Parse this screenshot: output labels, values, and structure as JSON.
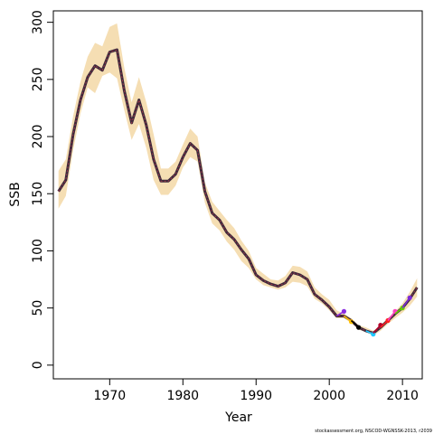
{
  "chart_data": {
    "type": "line",
    "title": "",
    "xlabel": "Year",
    "ylabel": "SSB",
    "xlim": [
      1962.3,
      2012.7
    ],
    "ylim": [
      -12,
      310
    ],
    "x_ticks": [
      1970,
      1980,
      1990,
      2000,
      2010
    ],
    "x_tick_labels": [
      "1970",
      "1980",
      "1990",
      "2000",
      "2010"
    ],
    "y_ticks": [
      0,
      50,
      100,
      150,
      200,
      250,
      300
    ],
    "y_tick_labels": [
      "0",
      "50",
      "100",
      "150",
      "200",
      "250",
      "300"
    ],
    "grid": false,
    "legend": "none",
    "band": {
      "name": "",
      "color": "#f5deb3",
      "x": [
        1963,
        1964,
        1965,
        1966,
        1967,
        1968,
        1969,
        1970,
        1971,
        1972,
        1973,
        1974,
        1975,
        1976,
        1977,
        1978,
        1979,
        1980,
        1981,
        1982,
        1983,
        1984,
        1985,
        1986,
        1987,
        1988,
        1989,
        1990,
        1991,
        1992,
        1993,
        1994,
        1995,
        1996,
        1997,
        1998,
        1999,
        2000,
        2001,
        2002,
        2003,
        2004,
        2005,
        2006,
        2007,
        2008,
        2009,
        2010,
        2011,
        2012
      ],
      "lower": [
        137,
        148,
        188,
        220,
        243,
        238,
        253,
        256,
        251,
        223,
        197,
        211,
        190,
        162,
        149,
        149,
        157,
        173,
        182,
        178,
        142,
        124,
        118,
        108,
        101,
        91,
        85,
        75,
        70,
        68,
        66,
        68,
        73,
        72,
        69,
        58,
        54,
        48,
        41,
        41,
        37,
        31,
        29,
        26,
        30,
        36,
        41,
        46,
        52,
        60
      ],
      "upper": [
        170,
        180,
        218,
        248,
        270,
        282,
        279,
        296,
        299,
        260,
        230,
        252,
        230,
        202,
        172,
        172,
        178,
        193,
        207,
        200,
        160,
        143,
        135,
        127,
        120,
        109,
        100,
        85,
        80,
        75,
        74,
        78,
        87,
        86,
        82,
        68,
        62,
        57,
        48,
        45,
        41,
        35,
        33,
        30,
        35,
        41,
        47,
        54,
        64,
        76
      ]
    },
    "series": [
      {
        "name": "",
        "color": "#3d2a3c",
        "x": [
          1963,
          1964,
          1965,
          1966,
          1967,
          1968,
          1969,
          1970,
          1971,
          1972,
          1973,
          1974,
          1975,
          1976,
          1977,
          1978,
          1979,
          1980,
          1981,
          1982,
          1983,
          1984,
          1985,
          1986,
          1987,
          1988,
          1989,
          1990,
          1991,
          1992,
          1993,
          1994,
          1995,
          1996,
          1997,
          1998,
          1999,
          2000,
          2001,
          2002,
          2003,
          2004,
          2005,
          2006,
          2007,
          2008,
          2009,
          2010,
          2011,
          2012
        ],
        "values": [
          152,
          162,
          202,
          232,
          252,
          262,
          258,
          274,
          276,
          240,
          212,
          232,
          210,
          180,
          161,
          161,
          167,
          182,
          194,
          188,
          152,
          133,
          127,
          116,
          110,
          101,
          93,
          79,
          74,
          71,
          69,
          72,
          81,
          79,
          75,
          62,
          57,
          51,
          43,
          43,
          39,
          33,
          30,
          28,
          33,
          39,
          45,
          50,
          58,
          68
        ]
      }
    ],
    "retro_peels": [
      {
        "name": "",
        "color": "#8a2be2",
        "point": [
          2002,
          47
        ],
        "x": [
          2001,
          2002
        ],
        "values": [
          43,
          47
        ]
      },
      {
        "name": "",
        "color": "#ffc107",
        "point": [
          2003,
          38
        ],
        "x": [
          2002,
          2003
        ],
        "values": [
          43,
          38
        ]
      },
      {
        "name": "",
        "color": "#000000",
        "point": [
          2004,
          33
        ],
        "x": [
          2003,
          2004
        ],
        "values": [
          39,
          33
        ]
      },
      {
        "name": "",
        "color": "#1ec8ff",
        "point": [
          2006,
          27
        ],
        "x": [
          2005,
          2006
        ],
        "values": [
          30,
          27
        ]
      },
      {
        "name": "",
        "color": "#b2002b",
        "point": [
          2007,
          35
        ],
        "x": [
          2006,
          2007
        ],
        "values": [
          28,
          35
        ]
      },
      {
        "name": "",
        "color": "#ff2020",
        "point": [
          2008,
          39
        ],
        "x": [
          2007,
          2008
        ],
        "values": [
          33,
          39
        ]
      },
      {
        "name": "",
        "color": "#ff40c0",
        "point": [
          2009,
          47
        ],
        "x": [
          2008,
          2009
        ],
        "values": [
          39,
          47
        ]
      },
      {
        "name": "",
        "color": "#66cc00",
        "point": [
          2010,
          50
        ],
        "x": [
          2009,
          2010
        ],
        "values": [
          45,
          50
        ]
      },
      {
        "name": "",
        "color": "#7b2bd9",
        "point": [
          2011,
          59
        ],
        "x": [
          2010,
          2011
        ],
        "values": [
          50,
          59
        ]
      }
    ],
    "footer": "stockassessment.org, NSCOD-WGNSSK-2013, r2039"
  }
}
